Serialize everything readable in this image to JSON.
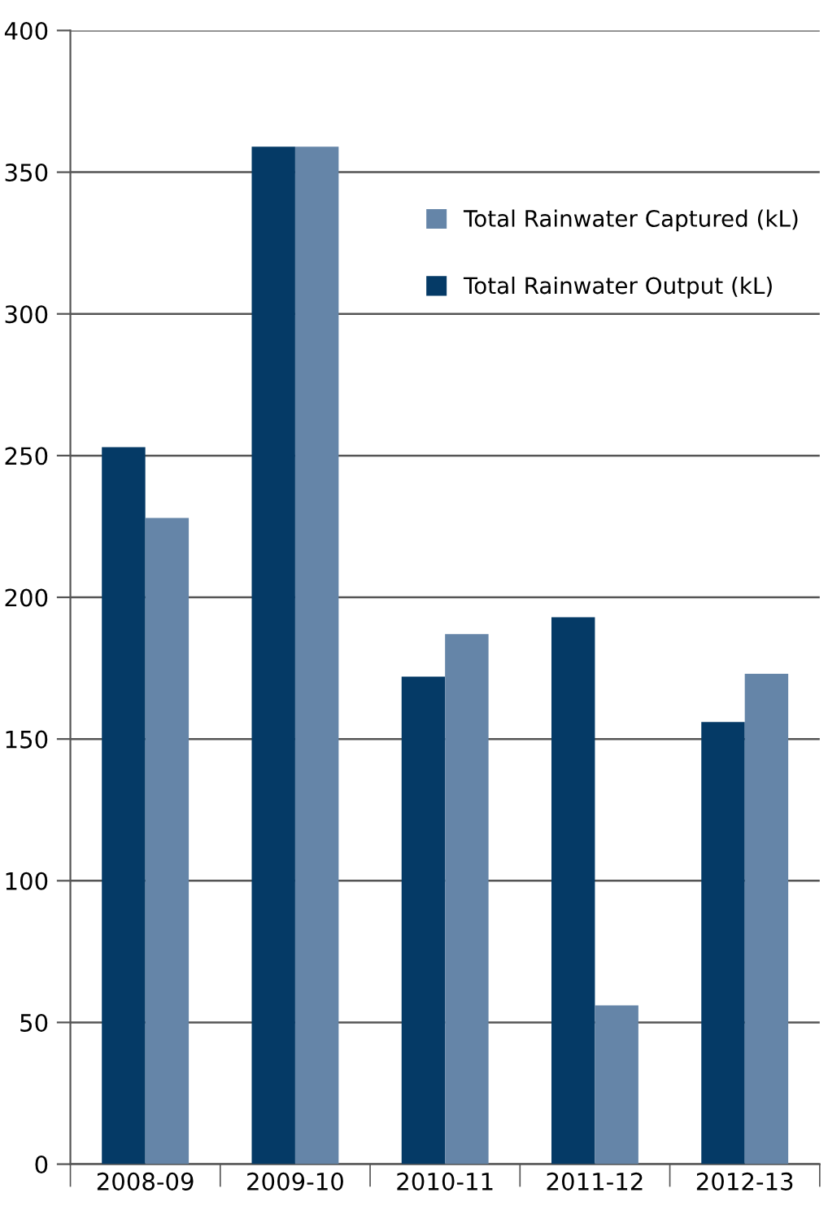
{
  "chart_data": {
    "type": "bar",
    "categories": [
      "2008-09",
      "2009-10",
      "2010-11",
      "2011-12",
      "2012-13"
    ],
    "series": [
      {
        "name": "Total Rainwater Output (kL)",
        "color": "#053a66",
        "values": [
          253,
          359,
          172,
          193,
          156
        ]
      },
      {
        "name": "Total Rainwater Captured (kL)",
        "color": "#6585a8",
        "values": [
          228,
          359,
          187,
          56,
          173
        ]
      }
    ],
    "ylim": [
      0,
      400
    ],
    "yticks": [
      0,
      50,
      100,
      150,
      200,
      250,
      300,
      350,
      400
    ],
    "grid": "y",
    "legend": "top right"
  }
}
